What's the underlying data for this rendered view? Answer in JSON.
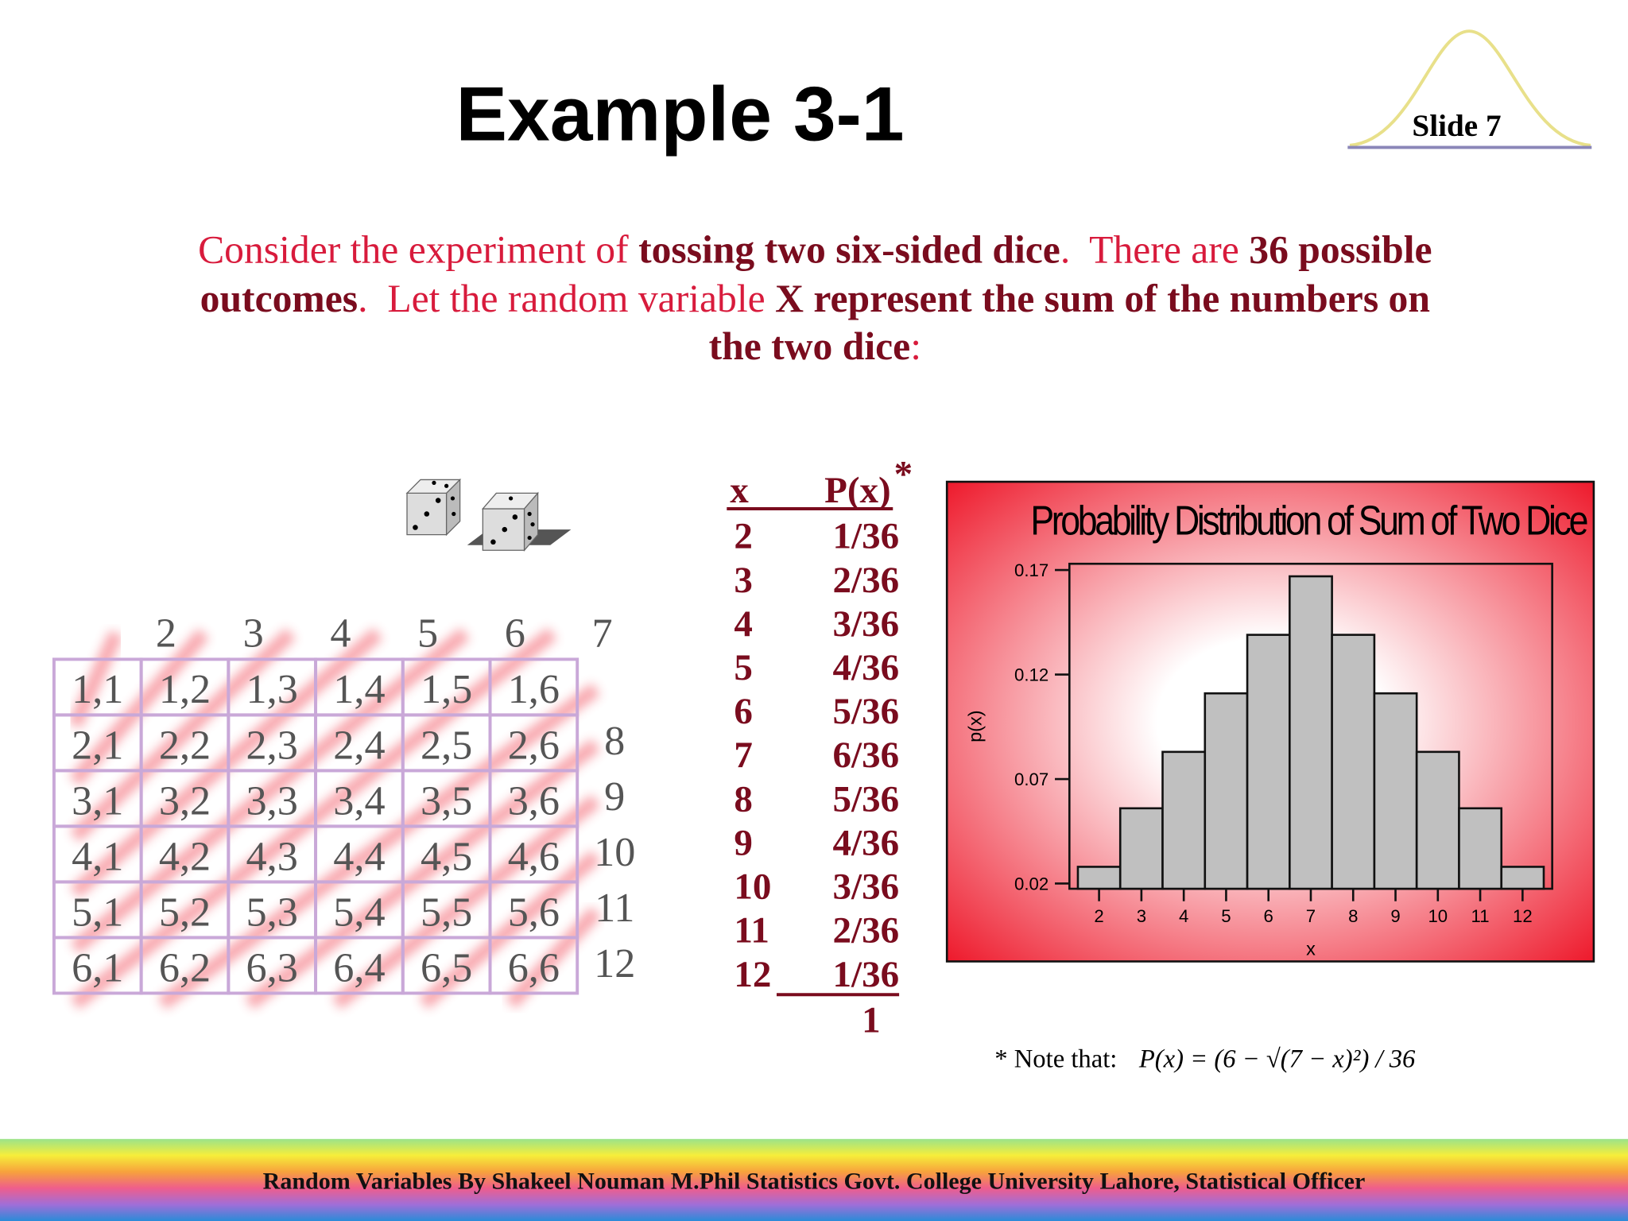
{
  "header": {
    "title": "Example 3-1",
    "slide": "Slide 7"
  },
  "body": {
    "lines": [
      [
        "Consider the experiment of ",
        "tossing two six-sided dice",
        ".  There are ",
        "36 possible"
      ],
      [
        "outcomes",
        ".  Let the random variable ",
        "X represent the sum of the numbers on"
      ],
      [
        "the two dice",
        ":"
      ]
    ]
  },
  "grid": {
    "rows": [
      [
        "1,1",
        "1,2",
        "1,3",
        "1,4",
        "1,5",
        "1,6"
      ],
      [
        "2,1",
        "2,2",
        "2,3",
        "2,4",
        "2,5",
        "2,6"
      ],
      [
        "3,1",
        "3,2",
        "3,3",
        "3,4",
        "3,5",
        "3,6"
      ],
      [
        "4,1",
        "4,2",
        "4,3",
        "4,4",
        "4,5",
        "4,6"
      ],
      [
        "5,1",
        "5,2",
        "5,3",
        "5,4",
        "5,5",
        "5,6"
      ],
      [
        "6,1",
        "6,2",
        "6,3",
        "6,4",
        "6,5",
        "6,6"
      ]
    ],
    "sums": [
      "2",
      "3",
      "4",
      "5",
      "6",
      "7",
      "8",
      "9",
      "10",
      "11",
      "12"
    ]
  },
  "table": {
    "header": [
      "x",
      "P(x)"
    ],
    "header_mark": "*",
    "rows": [
      [
        "2",
        "1/36"
      ],
      [
        "3",
        "2/36"
      ],
      [
        "4",
        "3/36"
      ],
      [
        "5",
        "4/36"
      ],
      [
        "6",
        "5/36"
      ],
      [
        "7",
        "6/36"
      ],
      [
        "8",
        "5/36"
      ],
      [
        "9",
        "4/36"
      ],
      [
        "10",
        "3/36"
      ],
      [
        "11",
        "2/36"
      ],
      [
        "12",
        "1/36"
      ]
    ],
    "total": "1"
  },
  "chart_data": {
    "type": "histogram",
    "title": "Probability Distribution of Sum of Two Dice",
    "xlabel": "x",
    "ylabel": "p(x)",
    "bins": [
      1.5,
      2.5,
      3.5,
      4.5,
      5.5,
      6.5,
      7.5,
      8.5,
      9.5,
      10.5,
      11.5,
      12.5
    ],
    "values": [
      0.028,
      0.056,
      0.083,
      0.111,
      0.139,
      0.167,
      0.139,
      0.111,
      0.083,
      0.056,
      0.028
    ],
    "color": "#c0c0c0",
    "xlim": [
      1.3,
      12.7
    ],
    "xticks": [
      2,
      3,
      4,
      5,
      6,
      7,
      8,
      9,
      10,
      11,
      12
    ],
    "ylim": [
      0.0175,
      0.173
    ],
    "yticks": [
      0.02,
      0.07,
      0.12,
      0.17
    ]
  },
  "note": {
    "prefix": "* Note that:",
    "formula": "P(x) = (6 − √(7 − x)²) / 36"
  },
  "footer": "Random Variables  By Shakeel Nouman M.Phil Statistics Govt. College University Lahore, Statistical Officer"
}
